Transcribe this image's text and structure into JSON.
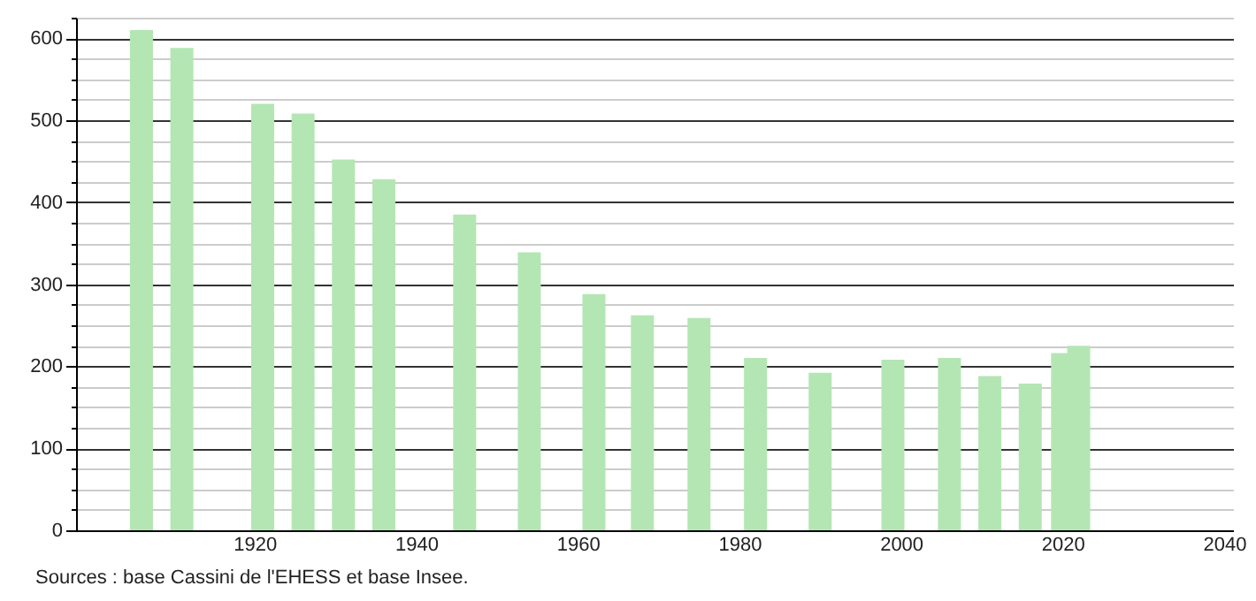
{
  "chart_data": {
    "type": "bar",
    "x": [
      1906,
      1911,
      1921,
      1926,
      1931,
      1936,
      1946,
      1954,
      1962,
      1968,
      1975,
      1982,
      1990,
      1999,
      2006,
      2011,
      2016,
      2020,
      2022
    ],
    "values": [
      610,
      588,
      520,
      508,
      452,
      428,
      385,
      339,
      288,
      262,
      259,
      210,
      192,
      208,
      210,
      188,
      179,
      216,
      225
    ],
    "color": "#b3e6b3",
    "xlim": [
      1899,
      2040
    ],
    "xticks": [
      1920,
      1940,
      1960,
      1980,
      2000,
      2020,
      2040
    ],
    "ylim": [
      0,
      625
    ],
    "yticks": [
      0,
      {
        "value": 25,
        "label": null
      },
      {
        "value": 50,
        "label": null
      },
      {
        "value": 75,
        "label": null
      },
      100,
      {
        "value": 125,
        "label": null
      },
      {
        "value": 150,
        "label": null
      },
      {
        "value": 175,
        "label": null
      },
      200,
      {
        "value": 225,
        "label": null
      },
      {
        "value": 250,
        "label": null
      },
      {
        "value": 275,
        "label": null
      },
      300,
      {
        "value": 325,
        "label": null
      },
      {
        "value": 350,
        "label": null
      },
      {
        "value": 375,
        "label": null
      },
      400,
      {
        "value": 425,
        "label": null
      },
      {
        "value": 450,
        "label": null
      },
      {
        "value": 475,
        "label": null
      },
      500,
      {
        "value": 525,
        "label": null
      },
      {
        "value": 550,
        "label": null
      },
      {
        "value": 575,
        "label": null
      },
      600,
      {
        "value": 625,
        "label": null
      }
    ],
    "grid": "y",
    "annotations": [
      "Sources : base Cassini de l'EHESS et base Insee."
    ]
  }
}
